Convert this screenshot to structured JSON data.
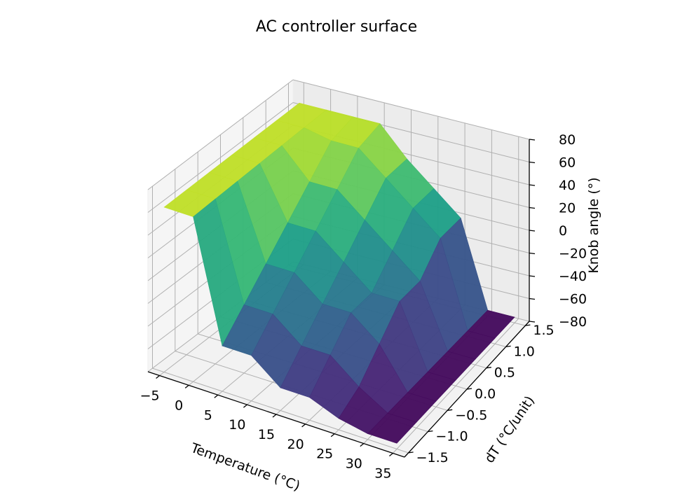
{
  "chart_data": {
    "type": "surface",
    "title": "AC controller surface",
    "xlabel": "Temperature (°C)",
    "ylabel": "dT (°C/unit)",
    "zlabel": "Knob angle (°)",
    "x_ticks": [
      "−5",
      "0",
      "5",
      "10",
      "15",
      "20",
      "25",
      "30",
      "35"
    ],
    "y_ticks": [
      "−1.5",
      "−1.0",
      "−0.5",
      "0.0",
      "0.5",
      "1.0",
      "1.5"
    ],
    "z_ticks": [
      "−80",
      "−60",
      "−40",
      "−20",
      "0",
      "20",
      "40",
      "60",
      "80"
    ],
    "xlim": [
      -7,
      37
    ],
    "ylim": [
      -1.6,
      1.6
    ],
    "zlim": [
      -80,
      80
    ],
    "colormap": "viridis",
    "grid": true,
    "temperature": [
      -5,
      0,
      5,
      10,
      15,
      20,
      25,
      30,
      35
    ],
    "dT": [
      -1.5,
      -1.0,
      -0.5,
      0.0,
      0.5,
      1.0,
      1.5
    ],
    "knob_angle": [
      [
        65,
        65,
        65,
        65,
        65,
        65,
        65
      ],
      [
        65,
        65,
        65,
        65,
        65,
        65,
        65
      ],
      [
        -40,
        -20,
        0,
        20,
        40,
        60,
        65
      ],
      [
        -40,
        -20,
        0,
        20,
        40,
        60,
        65
      ],
      [
        -60,
        -40,
        -20,
        0,
        20,
        40,
        40
      ],
      [
        -60,
        -40,
        -20,
        -20,
        0,
        20,
        20
      ],
      [
        -70,
        -60,
        -40,
        -20,
        -20,
        0,
        0
      ],
      [
        -75,
        -75,
        -75,
        -75,
        -75,
        -75,
        -75
      ],
      [
        -75,
        -75,
        -75,
        -75,
        -75,
        -75,
        -75
      ]
    ]
  }
}
